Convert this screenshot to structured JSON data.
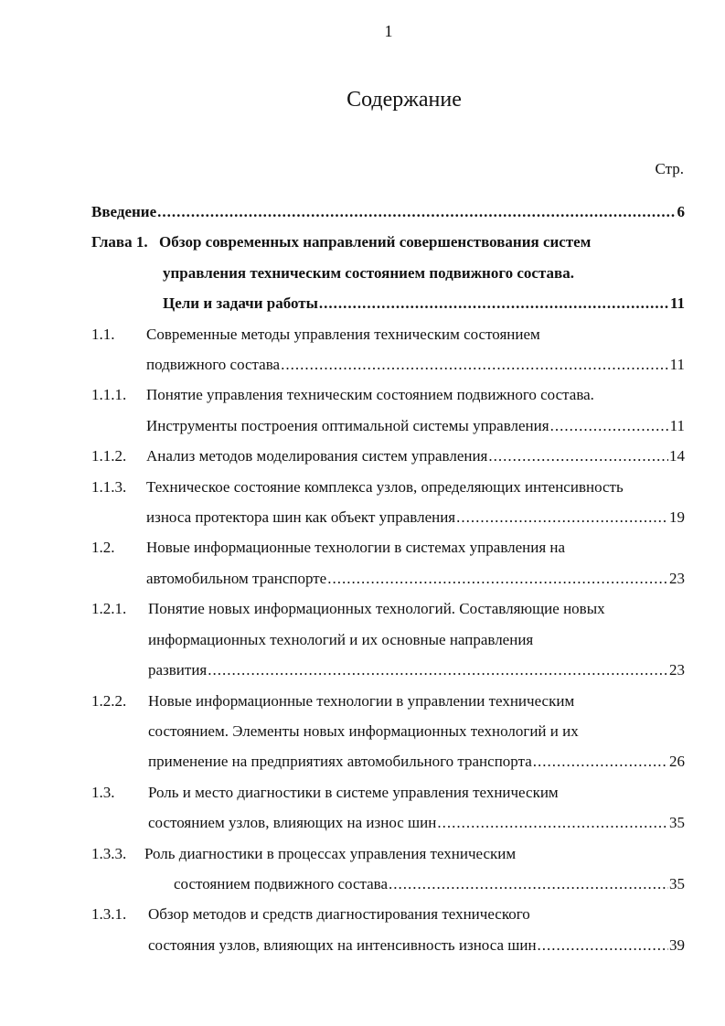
{
  "page_number": "1",
  "title": "Содержание",
  "page_column_label": "Стр.",
  "entries": [
    {
      "num": "",
      "lines": [
        "Введение"
      ],
      "page": "6",
      "bold": true,
      "indent": 0,
      "cont": 0
    },
    {
      "num": "Глава 1.",
      "lines": [
        "Обзор современных направлений совершенствования систем",
        "управления техническим состоянием подвижного состава.",
        "Цели и задачи работы "
      ],
      "page": "11",
      "bold": true,
      "indent": 74,
      "cont": 78
    },
    {
      "num": "1.1.",
      "lines": [
        "Современные методы управления техническим состоянием",
        "подвижного состава "
      ],
      "page": "11",
      "bold": false,
      "indent": 60,
      "cont": 60
    },
    {
      "num": "1.1.1.",
      "lines": [
        "Понятие управления техническим состоянием подвижного состава.",
        "Инструменты построения оптимальной системы управления "
      ],
      "page": "11",
      "bold": false,
      "indent": 60,
      "cont": 60
    },
    {
      "num": "1.1.2.",
      "lines": [
        "Анализ методов моделирования систем управления "
      ],
      "page": "14",
      "bold": false,
      "indent": 60,
      "cont": 60
    },
    {
      "num": "1.1.3.",
      "lines": [
        "Техническое состояние комплекса узлов, определяющих интенсивность",
        "износа протектора шин как объект управления "
      ],
      "page": "19",
      "bold": false,
      "indent": 60,
      "cont": 60
    },
    {
      "num": "1.2.",
      "lines": [
        "Новые информационные технологии  в системах управления на",
        "автомобильном транспорте"
      ],
      "page": "23",
      "bold": false,
      "indent": 60,
      "cont": 60
    },
    {
      "num": "1.2.1.",
      "lines": [
        "Понятие новых информационных технологий. Составляющие  новых",
        "информационных технологий и их основные направления",
        "развития"
      ],
      "page": "23",
      "bold": false,
      "indent": 62,
      "cont": 62
    },
    {
      "num": "1.2.2.",
      "lines": [
        "Новые информационные технологии в управлении техническим",
        "состоянием. Элементы новых информационных технологий и  их",
        "применение на предприятиях автомобильного транспорта"
      ],
      "page": "26",
      "bold": false,
      "indent": 62,
      "cont": 62
    },
    {
      "num": "1.3.",
      "lines": [
        "Роль и место диагностики в системе управления техническим",
        "состоянием узлов, влияющих на износ шин "
      ],
      "page": " 35",
      "bold": false,
      "indent": 62,
      "cont": 62
    },
    {
      "num": "1.3.3.",
      "lines": [
        "Роль диагностики в процессах управления техническим",
        "состоянием подвижного состава  "
      ],
      "page": "35",
      "bold": false,
      "indent": 58,
      "cont": 90
    },
    {
      "num": "1.3.1.",
      "lines": [
        "Обзор методов и средств диагностирования технического",
        "состояния узлов, влияющих на интенсивность износа шин "
      ],
      "page": " 39",
      "bold": false,
      "indent": 62,
      "cont": 62
    }
  ]
}
